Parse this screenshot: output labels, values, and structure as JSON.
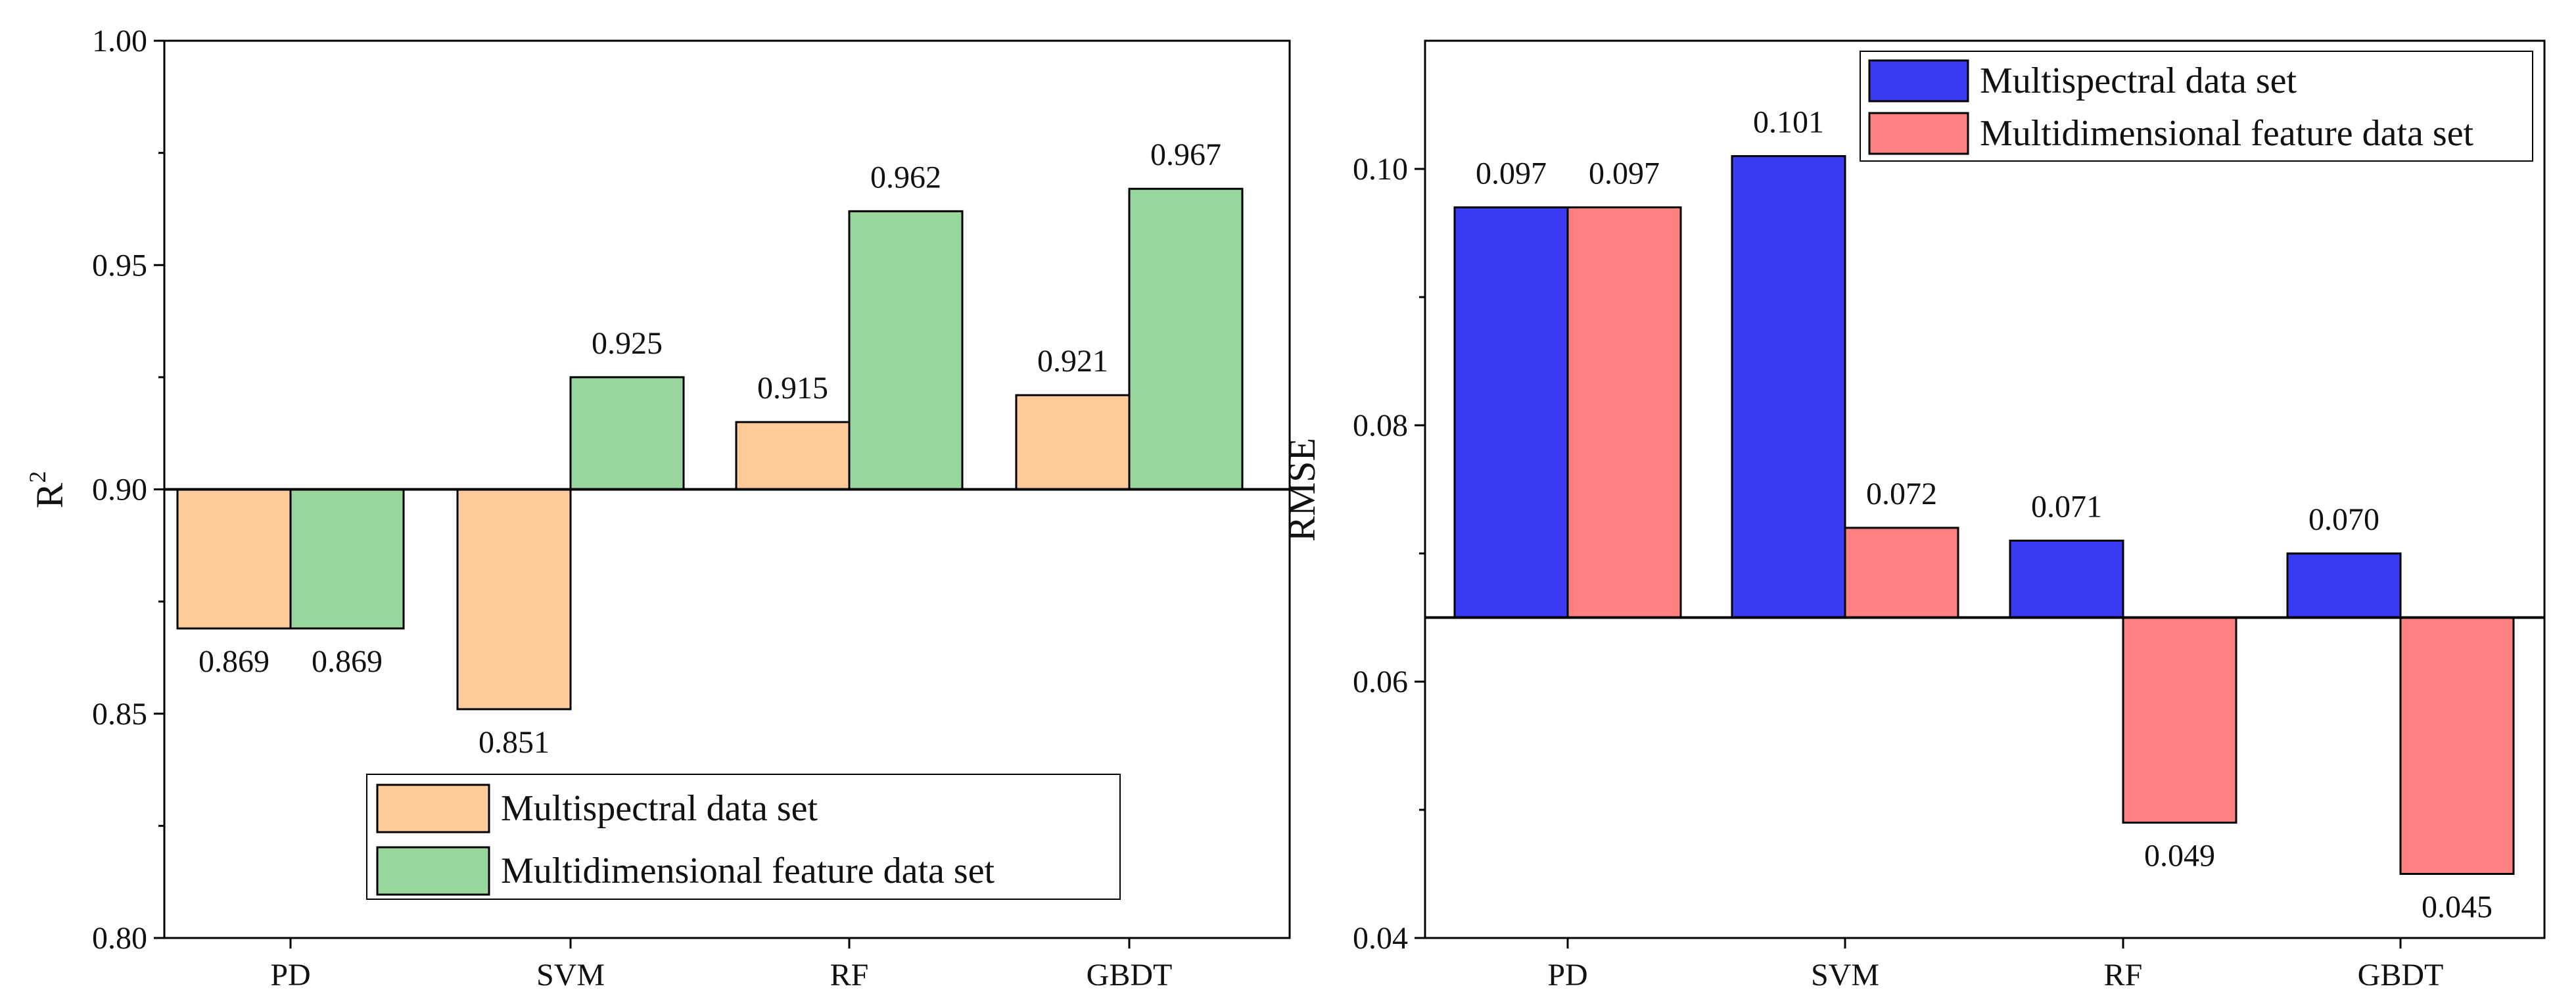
{
  "chart_data": [
    {
      "type": "bar",
      "baseline": 0.9,
      "categories": [
        "PD",
        "SVM",
        "RF",
        "GBDT"
      ],
      "series": [
        {
          "name": "Multispectral data set",
          "color": "#FFCC99",
          "values": [
            0.869,
            0.851,
            0.915,
            0.921
          ],
          "labels": [
            "0.869",
            "0.851",
            "0.915",
            "0.921"
          ]
        },
        {
          "name": "Multidimensional feature data set",
          "color": "#99D69E",
          "values": [
            0.869,
            0.925,
            0.962,
            0.967
          ],
          "labels": [
            "0.869",
            "0.925",
            "0.962",
            "0.967"
          ]
        }
      ],
      "xlabel": "",
      "ylabel": "R",
      "ylabel_sup": "2",
      "ylim": [
        0.8,
        1.0
      ],
      "yticks": [
        0.8,
        0.85,
        0.9,
        0.95,
        1.0
      ],
      "ytick_labels": [
        "0.80",
        "0.85",
        "0.90",
        "0.95",
        "1.00"
      ],
      "legend_position": "bottom-center",
      "grid": false
    },
    {
      "type": "bar",
      "baseline": 0.065,
      "categories": [
        "PD",
        "SVM",
        "RF",
        "GBDT"
      ],
      "series": [
        {
          "name": "Multispectral data set",
          "color": "#3B3BF5",
          "values": [
            0.097,
            0.101,
            0.071,
            0.07
          ],
          "labels": [
            "0.097",
            "0.101",
            "0.071",
            "0.070"
          ]
        },
        {
          "name": "Multidimensional feature data set",
          "color": "#FF8080",
          "values": [
            0.097,
            0.072,
            0.049,
            0.045
          ],
          "labels": [
            "0.097",
            "0.072",
            "0.049",
            "0.045"
          ]
        }
      ],
      "xlabel": "",
      "ylabel": "RMSE",
      "ylim": [
        0.04,
        0.11
      ],
      "yticks": [
        0.04,
        0.06,
        0.08,
        0.1
      ],
      "ytick_labels": [
        "0.04",
        "0.06",
        "0.08",
        "0.10"
      ],
      "legend_position": "top-right",
      "grid": false
    }
  ]
}
